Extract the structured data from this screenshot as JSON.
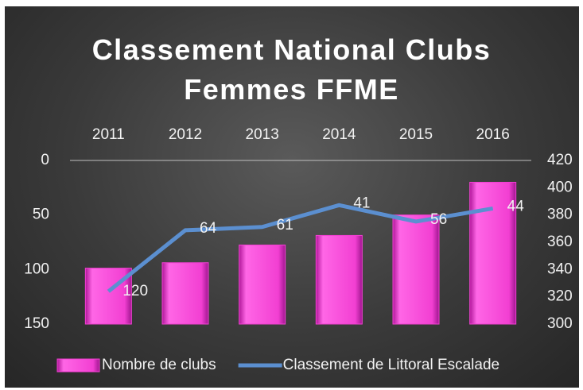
{
  "chart_data": {
    "type": "bar-line",
    "title": "Classement National Clubs Femmes FFME",
    "categories": [
      "2011",
      "2012",
      "2013",
      "2014",
      "2015",
      "2016"
    ],
    "series": [
      {
        "name": "Nombre de clubs",
        "color": "#f23fd2",
        "type": "bar",
        "axis": "y2",
        "values": [
          341,
          345,
          358,
          365,
          380,
          404
        ]
      },
      {
        "name": "Classement de Littoral Escalade",
        "color": "#5b8fd0",
        "type": "line",
        "axis": "y",
        "values": [
          120,
          64,
          61,
          41,
          56,
          44
        ]
      }
    ],
    "ylim": [
      150,
      0
    ],
    "yticks": [
      0,
      50,
      100,
      150
    ],
    "y2lim": [
      300,
      420
    ],
    "y2ticks": [
      300,
      320,
      340,
      360,
      380,
      400,
      420
    ],
    "legend": "bottom"
  }
}
